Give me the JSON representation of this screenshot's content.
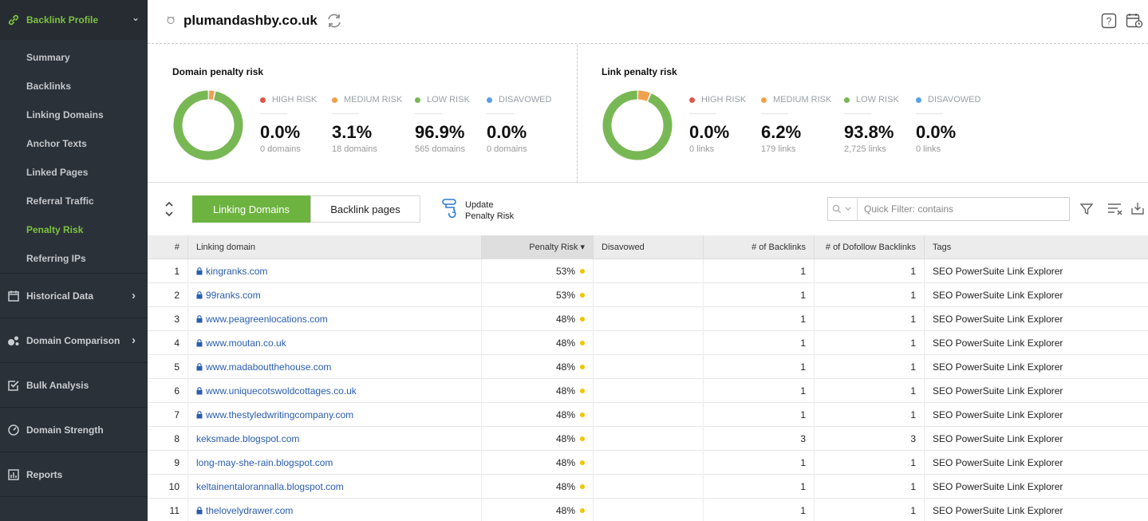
{
  "colors": {
    "accent": "#7cc242",
    "high": "#e0574a",
    "medium": "#f0a04b",
    "low": "#78b854",
    "disavowed": "#5a9ee6",
    "risk_dot": "#f2c500"
  },
  "sidebar": {
    "sections": [
      {
        "label": "Backlink Profile",
        "icon": "link-icon",
        "chevron": "⌄",
        "active": true
      },
      {
        "label": "Historical Data",
        "icon": "calendar-icon",
        "chevron": "›"
      },
      {
        "label": "Domain Comparison",
        "icon": "bubbles-icon",
        "chevron": "›"
      },
      {
        "label": "Bulk Analysis",
        "icon": "checklist-icon"
      },
      {
        "label": "Domain Strength",
        "icon": "gauge-icon"
      },
      {
        "label": "Reports",
        "icon": "report-icon"
      }
    ],
    "subitems": [
      "Summary",
      "Backlinks",
      "Linking Domains",
      "Anchor Texts",
      "Linked Pages",
      "Referral Traffic",
      "Penalty Risk",
      "Referring IPs"
    ],
    "active_subitem": "Penalty Risk"
  },
  "header": {
    "site": "plumandashby.co.uk"
  },
  "domain_risk": {
    "title": "Domain penalty risk",
    "stats": [
      {
        "label": "HIGH RISK",
        "pct": "0.0%",
        "sub": "0 domains",
        "color": "#e0574a"
      },
      {
        "label": "MEDIUM RISK",
        "pct": "3.1%",
        "sub": "18 domains",
        "color": "#f0a04b"
      },
      {
        "label": "LOW RISK",
        "pct": "96.9%",
        "sub": "565 domains",
        "color": "#78b854"
      },
      {
        "label": "DISAVOWED",
        "pct": "0.0%",
        "sub": "0 domains",
        "color": "#5a9ee6"
      }
    ],
    "donut_fractions": [
      0.0,
      0.031,
      0.969,
      0.0
    ]
  },
  "link_risk": {
    "title": "Link penalty risk",
    "stats": [
      {
        "label": "HIGH RISK",
        "pct": "0.0%",
        "sub": "0 links",
        "color": "#e0574a"
      },
      {
        "label": "MEDIUM RISK",
        "pct": "6.2%",
        "sub": "179 links",
        "color": "#f0a04b"
      },
      {
        "label": "LOW RISK",
        "pct": "93.8%",
        "sub": "2,725 links",
        "color": "#78b854"
      },
      {
        "label": "DISAVOWED",
        "pct": "0.0%",
        "sub": "0 links",
        "color": "#5a9ee6"
      }
    ],
    "donut_fractions": [
      0.0,
      0.062,
      0.938,
      0.0
    ]
  },
  "toolbar": {
    "tab_linking": "Linking Domains",
    "tab_backlinks": "Backlink pages",
    "update_line1": "Update",
    "update_line2": "Penalty Risk",
    "filter_placeholder": "Quick Filter: contains"
  },
  "table": {
    "headers": {
      "num": "#",
      "domain": "Linking domain",
      "risk": "Penalty Risk ▾",
      "disavowed": "Disavowed",
      "backlinks": "# of Backlinks",
      "dofollow": "# of Dofollow Backlinks",
      "tags": "Tags"
    },
    "rows": [
      {
        "n": "1",
        "domain": "kingranks.com",
        "lock": true,
        "risk": "53%",
        "bl": "1",
        "dof": "1",
        "tags": "SEO PowerSuite Link Explorer"
      },
      {
        "n": "2",
        "domain": "99ranks.com",
        "lock": true,
        "risk": "53%",
        "bl": "1",
        "dof": "1",
        "tags": "SEO PowerSuite Link Explorer"
      },
      {
        "n": "3",
        "domain": "www.peagreenlocations.com",
        "lock": true,
        "risk": "48%",
        "bl": "1",
        "dof": "1",
        "tags": "SEO PowerSuite Link Explorer"
      },
      {
        "n": "4",
        "domain": "www.moutan.co.uk",
        "lock": true,
        "risk": "48%",
        "bl": "1",
        "dof": "1",
        "tags": "SEO PowerSuite Link Explorer"
      },
      {
        "n": "5",
        "domain": "www.madaboutthehouse.com",
        "lock": true,
        "risk": "48%",
        "bl": "1",
        "dof": "1",
        "tags": "SEO PowerSuite Link Explorer"
      },
      {
        "n": "6",
        "domain": "www.uniquecotswoldcottages.co.uk",
        "lock": true,
        "risk": "48%",
        "bl": "1",
        "dof": "1",
        "tags": "SEO PowerSuite Link Explorer"
      },
      {
        "n": "7",
        "domain": "www.thestyledwritingcompany.com",
        "lock": true,
        "risk": "48%",
        "bl": "1",
        "dof": "1",
        "tags": "SEO PowerSuite Link Explorer"
      },
      {
        "n": "8",
        "domain": "keksmade.blogspot.com",
        "lock": false,
        "risk": "48%",
        "bl": "3",
        "dof": "3",
        "tags": "SEO PowerSuite Link Explorer"
      },
      {
        "n": "9",
        "domain": "long-may-she-rain.blogspot.com",
        "lock": false,
        "risk": "48%",
        "bl": "1",
        "dof": "1",
        "tags": "SEO PowerSuite Link Explorer"
      },
      {
        "n": "10",
        "domain": "keltainentalorannalla.blogspot.com",
        "lock": false,
        "risk": "48%",
        "bl": "1",
        "dof": "1",
        "tags": "SEO PowerSuite Link Explorer"
      },
      {
        "n": "11",
        "domain": "thelovelydrawer.com",
        "lock": true,
        "risk": "48%",
        "bl": "1",
        "dof": "1",
        "tags": "SEO PowerSuite Link Explorer"
      }
    ]
  }
}
